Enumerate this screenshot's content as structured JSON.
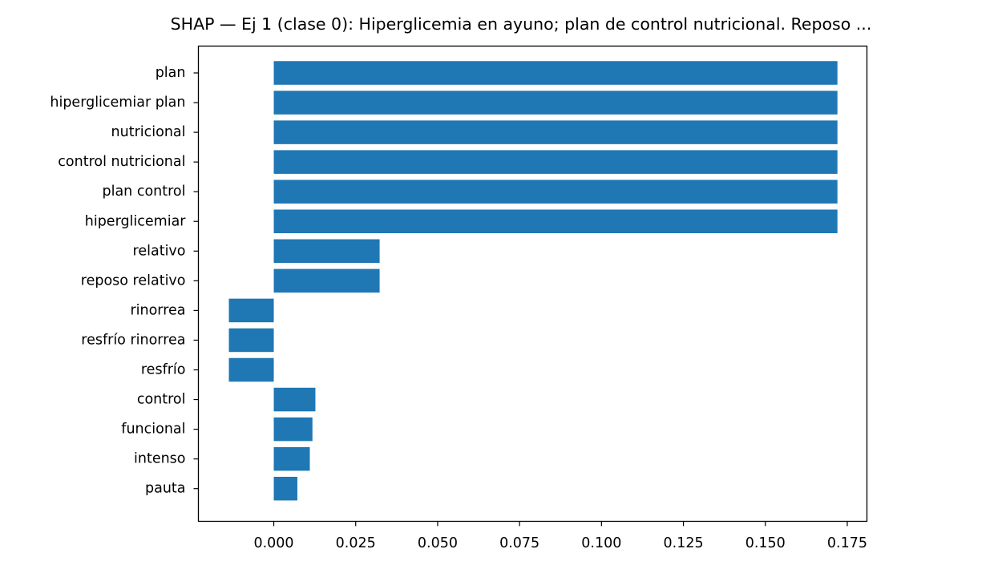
{
  "chart_data": {
    "type": "bar",
    "orientation": "horizontal",
    "title": "SHAP — Ej 1 (clase 0): Hiperglicemia en ayuno; plan de control nutricional. Reposo ...",
    "xlabel": "",
    "ylabel": "",
    "categories": [
      "plan",
      "hiperglicemiar plan",
      "nutricional",
      "control nutricional",
      "plan control",
      "hiperglicemiar",
      "relativo",
      "reposo relativo",
      "rinorrea",
      "resfrío rinorrea",
      "resfrío",
      "control",
      "funcional",
      "intenso",
      "pauta"
    ],
    "values": [
      0.172,
      0.172,
      0.172,
      0.172,
      0.172,
      0.172,
      0.0323,
      0.0323,
      -0.0137,
      -0.0137,
      -0.0137,
      0.0127,
      0.0118,
      0.011,
      0.0072
    ],
    "xlim": [
      -0.023,
      0.181
    ],
    "xticks": [
      0.0,
      0.025,
      0.05,
      0.075,
      0.1,
      0.125,
      0.15,
      0.175
    ],
    "xtick_labels": [
      "0.000",
      "0.025",
      "0.050",
      "0.075",
      "0.100",
      "0.125",
      "0.150",
      "0.175"
    ],
    "bar_color": "#1f77b4",
    "grid": false,
    "legend": "none"
  }
}
